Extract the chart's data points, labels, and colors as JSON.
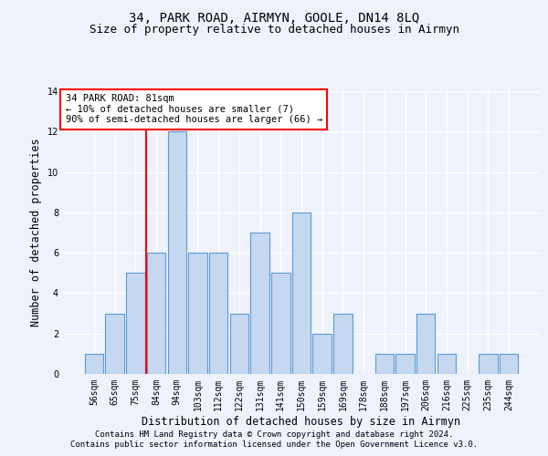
{
  "title1": "34, PARK ROAD, AIRMYN, GOOLE, DN14 8LQ",
  "title2": "Size of property relative to detached houses in Airmyn",
  "xlabel": "Distribution of detached houses by size in Airmyn",
  "ylabel": "Number of detached properties",
  "categories": [
    "56sqm",
    "65sqm",
    "75sqm",
    "84sqm",
    "94sqm",
    "103sqm",
    "112sqm",
    "122sqm",
    "131sqm",
    "141sqm",
    "150sqm",
    "159sqm",
    "169sqm",
    "178sqm",
    "188sqm",
    "197sqm",
    "206sqm",
    "216sqm",
    "225sqm",
    "235sqm",
    "244sqm"
  ],
  "values": [
    1,
    3,
    5,
    6,
    12,
    6,
    6,
    3,
    7,
    5,
    8,
    2,
    3,
    0,
    1,
    1,
    3,
    1,
    0,
    1,
    1
  ],
  "bar_color": "#c5d8f0",
  "bar_edge_color": "#5b9bd5",
  "annotation_box_text": "34 PARK ROAD: 81sqm\n← 10% of detached houses are smaller (7)\n90% of semi-detached houses are larger (66) →",
  "annotation_box_color": "#ffffff",
  "annotation_box_edgecolor": "red",
  "ylim": [
    0,
    14
  ],
  "yticks": [
    0,
    2,
    4,
    6,
    8,
    10,
    12,
    14
  ],
  "footnote1": "Contains HM Land Registry data © Crown copyright and database right 2024.",
  "footnote2": "Contains public sector information licensed under the Open Government Licence v3.0.",
  "background_color": "#eef2fb",
  "grid_color": "#ffffff",
  "title_fontsize": 10,
  "subtitle_fontsize": 9,
  "axis_label_fontsize": 8.5,
  "tick_fontsize": 7,
  "footnote_fontsize": 6.5,
  "annotation_fontsize": 7.5
}
